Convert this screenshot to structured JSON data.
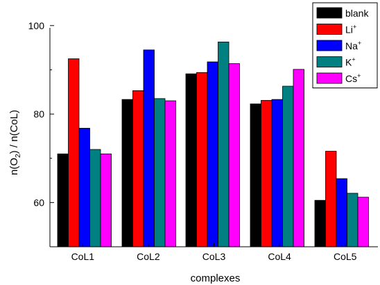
{
  "chart_data": {
    "type": "bar",
    "title": "",
    "xlabel": "complexes",
    "ylabel": "n(O2) / n(CoL)",
    "ylabel_parts": [
      "n(O",
      "2",
      ") / n(CoL)"
    ],
    "ylim": [
      50,
      105
    ],
    "yticks": [
      60,
      80,
      100
    ],
    "categories": [
      "CoL1",
      "CoL2",
      "CoL3",
      "CoL4",
      "CoL5"
    ],
    "legend_position": "top-right",
    "series": [
      {
        "name": "blank",
        "label_base": "blank",
        "label_sup": "",
        "color": "#000000",
        "values": [
          71.0,
          83.3,
          89.1,
          82.3,
          60.5
        ]
      },
      {
        "name": "Li+",
        "label_base": "Li",
        "label_sup": "+",
        "color": "#ff0000",
        "values": [
          92.5,
          85.3,
          89.4,
          83.1,
          71.6
        ]
      },
      {
        "name": "Na+",
        "label_base": "Na",
        "label_sup": "+",
        "color": "#0000ff",
        "values": [
          76.8,
          94.5,
          91.8,
          83.3,
          65.4
        ]
      },
      {
        "name": "K+",
        "label_base": "K",
        "label_sup": "+",
        "color": "#008080",
        "values": [
          72.0,
          83.5,
          96.3,
          86.3,
          62.1
        ]
      },
      {
        "name": "Cs+",
        "label_base": "Cs",
        "label_sup": "+",
        "color": "#ff00ff",
        "values": [
          71.0,
          83.0,
          91.4,
          90.1,
          61.2
        ]
      }
    ]
  }
}
